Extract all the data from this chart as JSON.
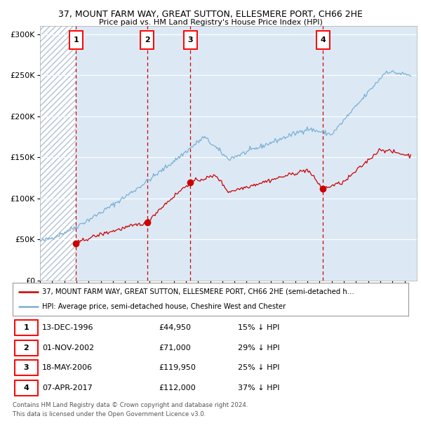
{
  "title_line1": "37, MOUNT FARM WAY, GREAT SUTTON, ELLESMERE PORT, CH66 2HE",
  "title_line2": "Price paid vs. HM Land Registry's House Price Index (HPI)",
  "ylim": [
    0,
    310000
  ],
  "yticks": [
    0,
    50000,
    100000,
    150000,
    200000,
    250000,
    300000
  ],
  "ytick_labels": [
    "£0",
    "£50K",
    "£100K",
    "£150K",
    "£200K",
    "£250K",
    "£300K"
  ],
  "background_color": "#ffffff",
  "plot_bg_color": "#dce9f5",
  "hatch_color": "#aabbcc",
  "sale_dates_num": [
    1996.95,
    2002.83,
    2006.38,
    2017.27
  ],
  "sale_prices": [
    44950,
    71000,
    119950,
    112000
  ],
  "sale_labels": [
    "1",
    "2",
    "3",
    "4"
  ],
  "red_line_color": "#cc0000",
  "blue_line_color": "#7ab0d4",
  "sale_dot_color": "#cc0000",
  "dashed_line_color": "#cc0000",
  "legend_red_label": "37, MOUNT FARM WAY, GREAT SUTTON, ELLESMERE PORT, CH66 2HE (semi-detached h…",
  "legend_blue_label": "HPI: Average price, semi-detached house, Cheshire West and Chester",
  "table_rows": [
    [
      "1",
      "13-DEC-1996",
      "£44,950",
      "15% ↓ HPI"
    ],
    [
      "2",
      "01-NOV-2002",
      "£71,000",
      "29% ↓ HPI"
    ],
    [
      "3",
      "18-MAY-2006",
      "£119,950",
      "25% ↓ HPI"
    ],
    [
      "4",
      "07-APR-2017",
      "£112,000",
      "37% ↓ HPI"
    ]
  ],
  "footnote1": "Contains HM Land Registry data © Crown copyright and database right 2024.",
  "footnote2": "This data is licensed under the Open Government Licence v3.0."
}
